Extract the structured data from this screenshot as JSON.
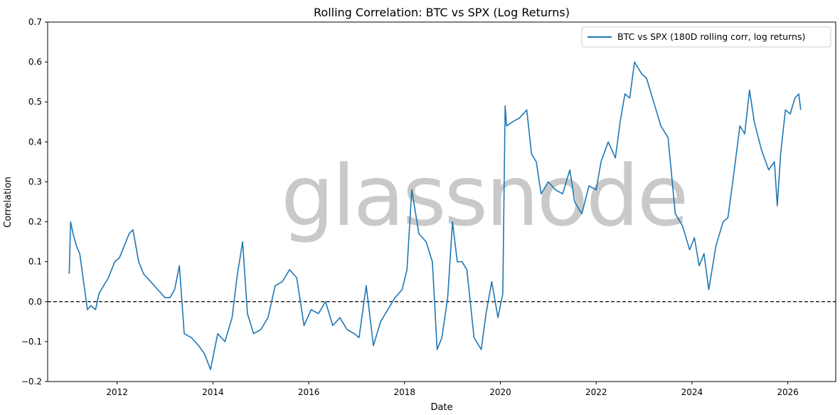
{
  "chart_data": {
    "type": "line",
    "title": "Rolling Correlation: BTC vs SPX (Log Returns)",
    "xlabel": "Date",
    "ylabel": "Correlation",
    "watermark": "glassnode",
    "xlim": [
      2010.55,
      2027.0
    ],
    "ylim": [
      -0.2,
      0.7
    ],
    "xticks": [
      2012,
      2014,
      2016,
      2018,
      2020,
      2022,
      2024,
      2026
    ],
    "yticks": [
      -0.2,
      -0.1,
      0.0,
      0.1,
      0.2,
      0.3,
      0.4,
      0.5,
      0.6,
      0.7
    ],
    "ytick_labels": [
      "−0.2",
      "−0.1",
      "0.0",
      "0.1",
      "0.2",
      "0.3",
      "0.4",
      "0.5",
      "0.6",
      "0.7"
    ],
    "reference_line": {
      "y": 0.0,
      "style": "dashed",
      "color": "#000000"
    },
    "legend": {
      "position": "top-right"
    },
    "series": [
      {
        "name": "BTC vs SPX (180D rolling corr, log returns)",
        "color": "#1f77b4",
        "x": [
          2011.0,
          2011.03,
          2011.08,
          2011.15,
          2011.22,
          2011.3,
          2011.38,
          2011.45,
          2011.55,
          2011.62,
          2011.72,
          2011.82,
          2011.95,
          2012.05,
          2012.15,
          2012.25,
          2012.33,
          2012.45,
          2012.55,
          2012.7,
          2012.85,
          2013.0,
          2013.1,
          2013.2,
          2013.3,
          2013.4,
          2013.55,
          2013.7,
          2013.82,
          2013.95,
          2014.1,
          2014.25,
          2014.4,
          2014.5,
          2014.62,
          2014.72,
          2014.85,
          2015.0,
          2015.15,
          2015.3,
          2015.45,
          2015.6,
          2015.75,
          2015.9,
          2016.05,
          2016.2,
          2016.35,
          2016.5,
          2016.65,
          2016.8,
          2016.95,
          2017.05,
          2017.2,
          2017.35,
          2017.5,
          2017.65,
          2017.8,
          2017.95,
          2018.05,
          2018.15,
          2018.3,
          2018.45,
          2018.58,
          2018.68,
          2018.78,
          2018.9,
          2019.0,
          2019.1,
          2019.2,
          2019.3,
          2019.45,
          2019.6,
          2019.7,
          2019.82,
          2019.95,
          2020.05,
          2020.1,
          2020.13,
          2020.25,
          2020.4,
          2020.55,
          2020.65,
          2020.75,
          2020.85,
          2021.0,
          2021.15,
          2021.3,
          2021.45,
          2021.55,
          2021.7,
          2021.85,
          2022.0,
          2022.1,
          2022.25,
          2022.4,
          2022.5,
          2022.6,
          2022.7,
          2022.8,
          2022.95,
          2023.05,
          2023.2,
          2023.35,
          2023.5,
          2023.65,
          2023.8,
          2023.95,
          2024.05,
          2024.15,
          2024.25,
          2024.35,
          2024.5,
          2024.65,
          2024.75,
          2024.85,
          2025.0,
          2025.1,
          2025.2,
          2025.3,
          2025.45,
          2025.6,
          2025.72,
          2025.78,
          2025.85,
          2025.95,
          2026.05,
          2026.15,
          2026.23,
          2026.27
        ],
        "values": [
          0.07,
          0.2,
          0.17,
          0.14,
          0.12,
          0.05,
          -0.02,
          -0.01,
          -0.02,
          0.02,
          0.04,
          0.06,
          0.1,
          0.11,
          0.14,
          0.17,
          0.18,
          0.1,
          0.07,
          0.05,
          0.03,
          0.01,
          0.01,
          0.03,
          0.09,
          -0.08,
          -0.09,
          -0.11,
          -0.13,
          -0.17,
          -0.08,
          -0.1,
          -0.04,
          0.06,
          0.15,
          -0.03,
          -0.08,
          -0.07,
          -0.04,
          0.04,
          0.05,
          0.08,
          0.06,
          -0.06,
          -0.02,
          -0.03,
          0.0,
          -0.06,
          -0.04,
          -0.07,
          -0.08,
          -0.09,
          0.04,
          -0.11,
          -0.05,
          -0.02,
          0.01,
          0.03,
          0.08,
          0.28,
          0.17,
          0.15,
          0.1,
          -0.12,
          -0.09,
          0.01,
          0.2,
          0.1,
          0.1,
          0.08,
          -0.09,
          -0.12,
          -0.03,
          0.05,
          -0.04,
          0.02,
          0.49,
          0.44,
          0.45,
          0.46,
          0.48,
          0.37,
          0.35,
          0.27,
          0.3,
          0.28,
          0.27,
          0.33,
          0.25,
          0.22,
          0.29,
          0.28,
          0.35,
          0.4,
          0.36,
          0.45,
          0.52,
          0.51,
          0.6,
          0.57,
          0.56,
          0.5,
          0.44,
          0.41,
          0.22,
          0.19,
          0.13,
          0.16,
          0.09,
          0.12,
          0.03,
          0.14,
          0.2,
          0.21,
          0.3,
          0.44,
          0.42,
          0.53,
          0.45,
          0.38,
          0.33,
          0.35,
          0.24,
          0.37,
          0.48,
          0.47,
          0.51,
          0.52,
          0.48
        ]
      }
    ]
  }
}
